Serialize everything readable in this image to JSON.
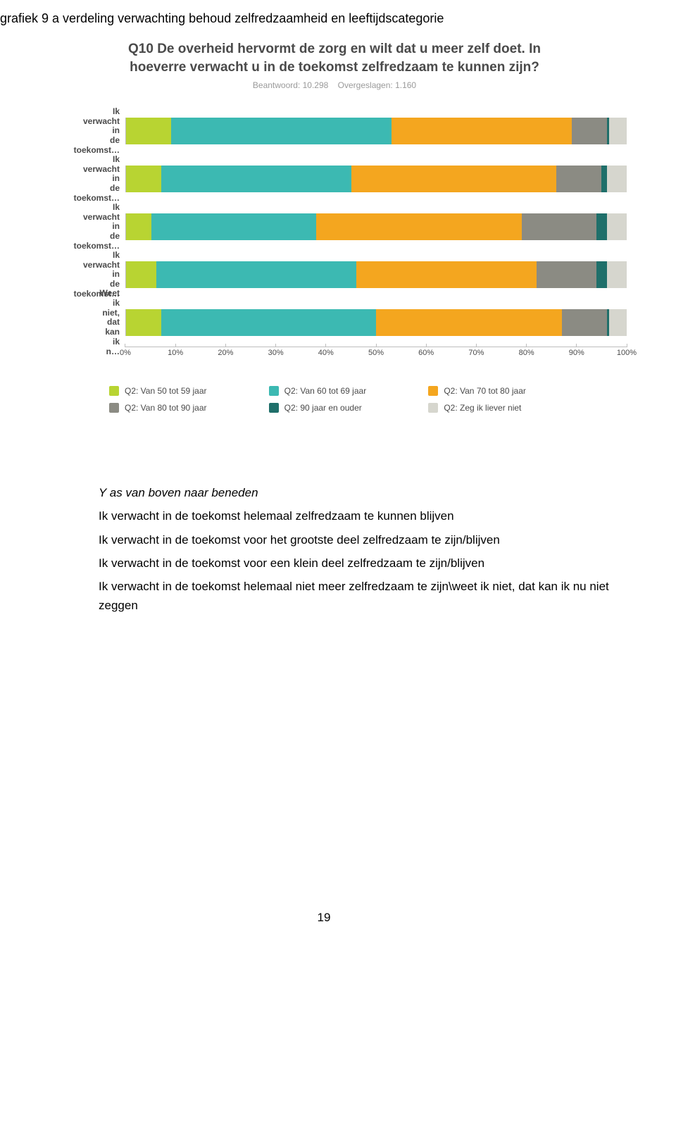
{
  "doc_title": "grafiek 9 a  verdeling verwachting behoud zelfredzaamheid en leeftijdscategorie",
  "chart": {
    "type": "stacked-bar-horizontal",
    "title": "Q10 De overheid hervormt de zorg en wilt dat u meer zelf doet. In hoeverre verwacht u in de toekomst zelfredzaam te kunnen zijn?",
    "meta_answered_label": "Beantwoord:",
    "meta_answered_value": "10.298",
    "meta_skipped_label": "Overgeslagen:",
    "meta_skipped_value": "1.160",
    "xlim": [
      0,
      100
    ],
    "xtick_step": 10,
    "xtick_suffix": "%",
    "background_color": "#ffffff",
    "axis_color": "#bdbdbd",
    "label_fontsize": 12,
    "title_fontsize": 19,
    "rows": [
      {
        "label": "Ik verwacht in de toekomst…",
        "segments": [
          {
            "series": "s50",
            "value": 9
          },
          {
            "series": "s60",
            "value": 44
          },
          {
            "series": "s70",
            "value": 36
          },
          {
            "series": "s80",
            "value": 7
          },
          {
            "series": "s90",
            "value": 0.5
          },
          {
            "series": "sZeg",
            "value": 3.5
          }
        ]
      },
      {
        "label": "Ik verwacht in de toekomst…",
        "segments": [
          {
            "series": "s50",
            "value": 7
          },
          {
            "series": "s60",
            "value": 38
          },
          {
            "series": "s70",
            "value": 41
          },
          {
            "series": "s80",
            "value": 9
          },
          {
            "series": "s90",
            "value": 1
          },
          {
            "series": "sZeg",
            "value": 4
          }
        ]
      },
      {
        "label": "Ik verwacht in de toekomst…",
        "segments": [
          {
            "series": "s50",
            "value": 5
          },
          {
            "series": "s60",
            "value": 33
          },
          {
            "series": "s70",
            "value": 41
          },
          {
            "series": "s80",
            "value": 15
          },
          {
            "series": "s90",
            "value": 2
          },
          {
            "series": "sZeg",
            "value": 4
          }
        ]
      },
      {
        "label": "Ik verwacht in de toekomst…",
        "segments": [
          {
            "series": "s50",
            "value": 6
          },
          {
            "series": "s60",
            "value": 40
          },
          {
            "series": "s70",
            "value": 36
          },
          {
            "series": "s80",
            "value": 12
          },
          {
            "series": "s90",
            "value": 2
          },
          {
            "series": "sZeg",
            "value": 4
          }
        ]
      },
      {
        "label": "Weet ik niet, dat kan ik n…",
        "segments": [
          {
            "series": "s50",
            "value": 7
          },
          {
            "series": "s60",
            "value": 43
          },
          {
            "series": "s70",
            "value": 37
          },
          {
            "series": "s80",
            "value": 9
          },
          {
            "series": "s90",
            "value": 0.5
          },
          {
            "series": "sZeg",
            "value": 3.5
          }
        ]
      }
    ],
    "series": {
      "s50": {
        "label": "Q2: Van 50 tot 59 jaar",
        "color": "#b8d432"
      },
      "s60": {
        "label": "Q2: Van 60 tot 69 jaar",
        "color": "#3cb9b2"
      },
      "s70": {
        "label": "Q2: Van 70 tot 80 jaar",
        "color": "#f4a61f"
      },
      "s80": {
        "label": "Q2: Van 80 tot 90 jaar",
        "color": "#8b8b83"
      },
      "s90": {
        "label": "Q2: 90 jaar en ouder",
        "color": "#1f6f6a"
      },
      "sZeg": {
        "label": "Q2: Zeg ik liever niet",
        "color": "#d6d6ce"
      }
    },
    "legend_layout": [
      [
        "s50",
        "s60",
        "s70"
      ],
      [
        "s80",
        "s90",
        "sZeg"
      ]
    ]
  },
  "explain": {
    "lead": "Y as van boven naar beneden",
    "lines": [
      "Ik verwacht in de toekomst helemaal zelfredzaam te kunnen blijven",
      "Ik verwacht in de toekomst voor het grootste deel zelfredzaam te zijn/blijven",
      "Ik verwacht in de toekomst voor een klein deel zelfredzaam te zijn/blijven",
      "Ik verwacht in de toekomst helemaal niet meer zelfredzaam te zijn\\weet ik niet, dat kan ik nu niet zeggen"
    ]
  },
  "page_number": "19"
}
